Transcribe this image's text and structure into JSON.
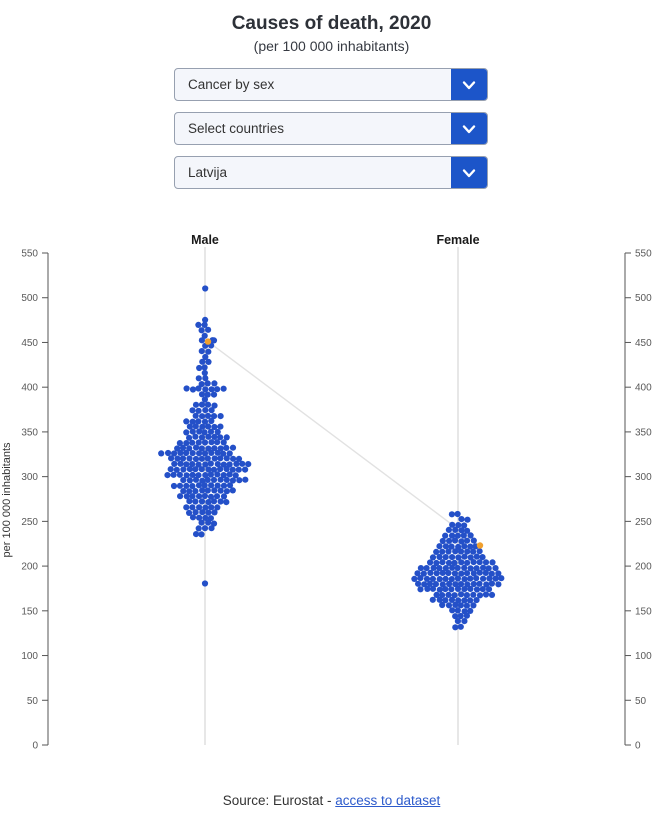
{
  "header": {
    "title": "Causes of death, 2020",
    "subtitle": "(per 100 000 inhabitants)"
  },
  "controls": {
    "selects": [
      {
        "name": "indicator-select",
        "value": "Cancer by sex"
      },
      {
        "name": "countries-select",
        "value": "Select countries"
      },
      {
        "name": "highlight-country-select",
        "value": "Latvija"
      }
    ]
  },
  "footer": {
    "source_prefix": "Source: Eurostat - ",
    "link_label": "access to dataset"
  },
  "colors": {
    "accent_blue": "#1c55c9",
    "dot_blue": "#2450c8",
    "highlight_orange": "#f0a02d",
    "link_blue": "#2d5bcc",
    "axis": "#555555",
    "guide_line": "#cfcfcf",
    "connector_line": "#e2e2e2",
    "tick_label": "#595959"
  },
  "chart_data": {
    "type": "beeswarm",
    "title": "Causes of death, 2020",
    "subtitle": "(per 100 000 inhabitants)",
    "ylabel": "per 100 000 inhabitants",
    "ylim": [
      0,
      550
    ],
    "yticks": [
      0,
      50,
      100,
      150,
      200,
      250,
      300,
      350,
      400,
      450,
      500,
      550
    ],
    "axis_on_both_sides": true,
    "highlighted_country": "Latvija",
    "dot_color": "#2450c8",
    "highlight_color": "#f0a02d",
    "groups": [
      {
        "label": "Male",
        "distribution": [
          [
            510,
            1
          ],
          [
            475,
            1
          ],
          [
            470,
            2
          ],
          [
            464,
            2
          ],
          [
            458,
            1
          ],
          [
            452,
            3
          ],
          [
            446,
            2
          ],
          [
            440,
            2
          ],
          [
            434,
            1
          ],
          [
            428,
            2
          ],
          [
            422,
            2
          ],
          [
            416,
            1
          ],
          [
            410,
            2
          ],
          [
            404,
            3
          ],
          [
            398,
            7
          ],
          [
            392,
            3
          ],
          [
            386,
            1
          ],
          [
            380,
            4
          ],
          [
            374,
            4
          ],
          [
            368,
            5
          ],
          [
            362,
            5
          ],
          [
            356,
            6
          ],
          [
            350,
            6
          ],
          [
            344,
            7
          ],
          [
            338,
            8
          ],
          [
            332,
            10
          ],
          [
            326,
            12
          ],
          [
            320,
            12
          ],
          [
            314,
            13
          ],
          [
            308,
            13
          ],
          [
            302,
            12
          ],
          [
            296,
            11
          ],
          [
            290,
            10
          ],
          [
            284,
            9
          ],
          [
            278,
            8
          ],
          [
            272,
            7
          ],
          [
            266,
            6
          ],
          [
            260,
            5
          ],
          [
            254,
            4
          ],
          [
            248,
            3
          ],
          [
            242,
            3
          ],
          [
            236,
            2
          ],
          [
            180,
            1
          ]
        ],
        "highlight": {
          "value": 451,
          "offset": 3
        }
      },
      {
        "label": "Female",
        "distribution": [
          [
            258,
            2
          ],
          [
            252,
            2
          ],
          [
            246,
            3
          ],
          [
            240,
            4
          ],
          [
            234,
            5
          ],
          [
            228,
            6
          ],
          [
            222,
            7
          ],
          [
            216,
            8
          ],
          [
            210,
            9
          ],
          [
            204,
            11
          ],
          [
            198,
            13
          ],
          [
            192,
            14
          ],
          [
            186,
            15
          ],
          [
            180,
            14
          ],
          [
            174,
            12
          ],
          [
            168,
            10
          ],
          [
            162,
            8
          ],
          [
            156,
            6
          ],
          [
            150,
            4
          ],
          [
            144,
            3
          ],
          [
            138,
            2
          ],
          [
            132,
            2
          ]
        ],
        "highlight": {
          "value": 223,
          "offset": 22
        }
      }
    ]
  }
}
